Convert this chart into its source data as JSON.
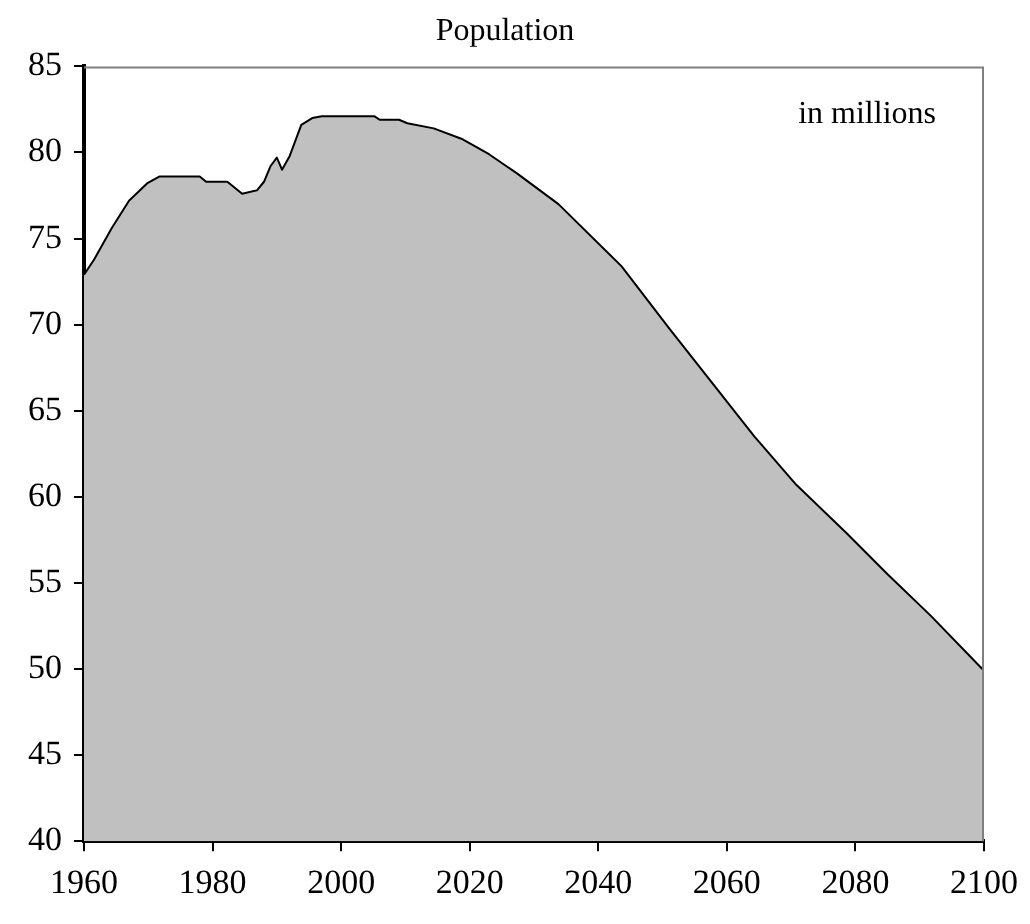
{
  "chart_data": {
    "type": "area",
    "title": "Population",
    "annotations": [
      "in millions"
    ],
    "x": [
      1960,
      1961.6,
      1964.3,
      1967,
      1969.8,
      1971.7,
      1978,
      1979,
      1982.3,
      1984.6,
      1986.9,
      1988,
      1989,
      1990,
      1990.8,
      1992,
      1993.8,
      1995.5,
      1997,
      2005.2,
      2006,
      2009,
      2010.3,
      2014.4,
      2018.7,
      2023,
      2027.3,
      2033.8,
      2043.6,
      2051,
      2056.7,
      2064.3,
      2070.8,
      2078.6,
      2085,
      2091.7,
      2100
    ],
    "series": [
      {
        "color": "#c0c0c0",
        "values": [
          72.9,
          73.8,
          75.6,
          77.2,
          78.2,
          78.6,
          78.6,
          78.3,
          78.3,
          77.6,
          77.8,
          78.3,
          79.2,
          79.7,
          79.0,
          79.8,
          81.6,
          82.0,
          82.1,
          82.1,
          81.9,
          81.9,
          81.7,
          81.4,
          80.8,
          79.9,
          78.8,
          77.0,
          73.4,
          69.8,
          67.1,
          63.5,
          60.7,
          57.9,
          55.5,
          53.1,
          49.9
        ]
      }
    ],
    "xlim": [
      1960,
      2100
    ],
    "xticks": [
      1960,
      1980,
      2000,
      2020,
      2040,
      2060,
      2080,
      2100
    ],
    "ylim": [
      40,
      85
    ],
    "yticks": [
      40,
      45,
      50,
      55,
      60,
      65,
      70,
      75,
      80,
      85
    ]
  }
}
